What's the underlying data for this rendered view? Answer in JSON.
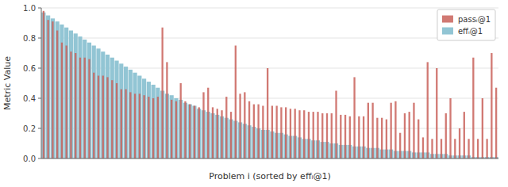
{
  "chart_data": {
    "type": "bar",
    "title": "",
    "xlabel": "Problem i (sorted by effᵢ@1)",
    "ylabel": "Metric Value",
    "ylim": [
      0.0,
      1.0
    ],
    "yticks": [
      {
        "value": 0.0,
        "label": "0.0"
      },
      0.2,
      0.4,
      0.6,
      0.8,
      {
        "value": 1.0,
        "label": "1.0"
      }
    ],
    "grid": true,
    "legend": "upper right",
    "tick_labels": "y",
    "categories": [
      null,
      null,
      null,
      null,
      null,
      null,
      null,
      null,
      null,
      null,
      null,
      null,
      null,
      null,
      null,
      null,
      null,
      null,
      null,
      null,
      null,
      null,
      null,
      null,
      null,
      null,
      null,
      null,
      null,
      null,
      null,
      null,
      null,
      null,
      null,
      null,
      null,
      null,
      null,
      null,
      null,
      null,
      null,
      null,
      null,
      null,
      null,
      null,
      null,
      null,
      null,
      null,
      null,
      null,
      null,
      null,
      null,
      null,
      null,
      null,
      null,
      null,
      null,
      null,
      null,
      null,
      null,
      null,
      null,
      null,
      null,
      null,
      null,
      null,
      null,
      null,
      null,
      null,
      null,
      null,
      null,
      null,
      null,
      null,
      null,
      null,
      null,
      null,
      null,
      null,
      null,
      null,
      null,
      null,
      null,
      null,
      null,
      null,
      null,
      null
    ],
    "series": [
      {
        "name": "effᵢ@1",
        "color": "#92c5d4",
        "values": [
          0.97,
          0.95,
          0.93,
          0.91,
          0.89,
          0.87,
          0.85,
          0.83,
          0.81,
          0.79,
          0.77,
          0.75,
          0.73,
          0.71,
          0.69,
          0.67,
          0.65,
          0.63,
          0.61,
          0.59,
          0.57,
          0.55,
          0.53,
          0.51,
          0.49,
          0.47,
          0.45,
          0.43,
          0.42,
          0.4,
          0.39,
          0.37,
          0.36,
          0.35,
          0.33,
          0.32,
          0.31,
          0.3,
          0.29,
          0.28,
          0.27,
          0.26,
          0.25,
          0.24,
          0.23,
          0.22,
          0.21,
          0.2,
          0.19,
          0.19,
          0.18,
          0.17,
          0.17,
          0.16,
          0.15,
          0.15,
          0.14,
          0.13,
          0.13,
          0.12,
          0.12,
          0.11,
          0.11,
          0.1,
          0.1,
          0.09,
          0.09,
          0.09,
          0.08,
          0.08,
          0.08,
          0.07,
          0.07,
          0.07,
          0.06,
          0.06,
          0.06,
          0.05,
          0.05,
          0.05,
          0.05,
          0.04,
          0.04,
          0.04,
          0.04,
          0.03,
          0.03,
          0.03,
          0.03,
          0.02,
          0.02,
          0.02,
          0.02,
          0.02,
          0.01,
          0.01,
          0.01,
          0.01,
          0.01,
          0.01
        ]
      },
      {
        "name": "passᵢ@1",
        "color": "#c9625a",
        "values": [
          0.98,
          0.92,
          0.91,
          0.85,
          0.77,
          0.75,
          0.71,
          0.7,
          0.67,
          0.67,
          0.66,
          0.57,
          0.55,
          0.55,
          0.54,
          0.52,
          0.5,
          0.46,
          0.46,
          0.44,
          0.43,
          0.43,
          0.42,
          0.41,
          0.4,
          0.41,
          0.87,
          0.64,
          0.39,
          0.38,
          0.5,
          0.38,
          0.36,
          0.35,
          0.34,
          0.44,
          0.47,
          0.34,
          0.33,
          0.32,
          0.41,
          0.31,
          0.75,
          0.43,
          0.44,
          0.38,
          0.36,
          0.36,
          0.35,
          0.6,
          0.35,
          0.35,
          0.34,
          0.34,
          0.33,
          0.33,
          0.32,
          0.32,
          0.31,
          0.31,
          0.31,
          0.3,
          0.3,
          0.3,
          0.45,
          0.29,
          0.29,
          0.28,
          0.54,
          0.28,
          0.28,
          0.37,
          0.37,
          0.27,
          0.27,
          0.26,
          0.37,
          0.38,
          0.17,
          0.3,
          0.31,
          0.37,
          0.26,
          0.14,
          0.64,
          0.13,
          0.6,
          0.13,
          0.3,
          0.4,
          0.13,
          0.2,
          0.31,
          0.13,
          0.67,
          0.13,
          0.4,
          0.13,
          0.7,
          0.47
        ]
      }
    ]
  }
}
